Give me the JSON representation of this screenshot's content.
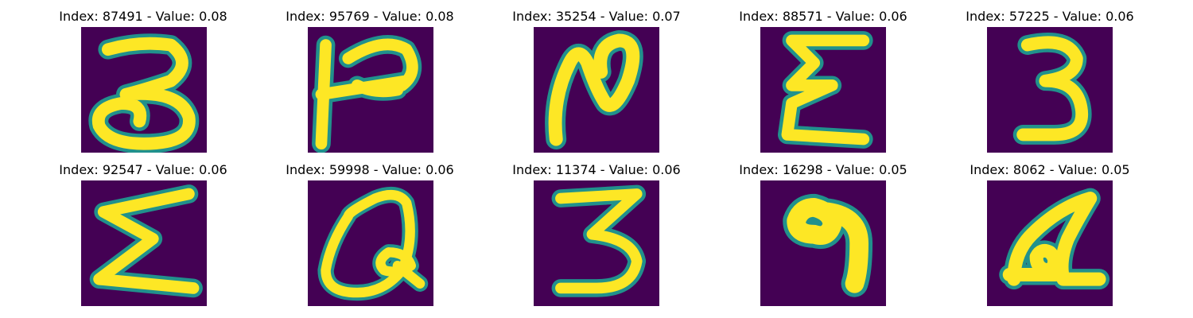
{
  "colors": {
    "background": "#440154",
    "glow": "#21918c",
    "stroke": "#fde725"
  },
  "grid": [
    {
      "title": "Index: 87491 - Value: 0.08",
      "glyph": "digit-3-tall"
    },
    {
      "title": "Index: 95769 - Value: 0.08",
      "glyph": "letter-like-kappa"
    },
    {
      "title": "Index: 35254 - Value: 0.07",
      "glyph": "letter-N-curved"
    },
    {
      "title": "Index: 88571 - Value: 0.06",
      "glyph": "sigma-like"
    },
    {
      "title": "Index: 57225 - Value: 0.06",
      "glyph": "digit-3"
    },
    {
      "title": "Index: 92547 - Value: 0.06",
      "glyph": "sigma-wide"
    },
    {
      "title": "Index: 59998 - Value: 0.06",
      "glyph": "loop-Q-like"
    },
    {
      "title": "Index: 11374 - Value: 0.06",
      "glyph": "digit-3-wide"
    },
    {
      "title": "Index: 16298 - Value: 0.05",
      "glyph": "digit-9"
    },
    {
      "title": "Index: 8062 - Value: 0.05",
      "glyph": "letter-A-like"
    }
  ]
}
